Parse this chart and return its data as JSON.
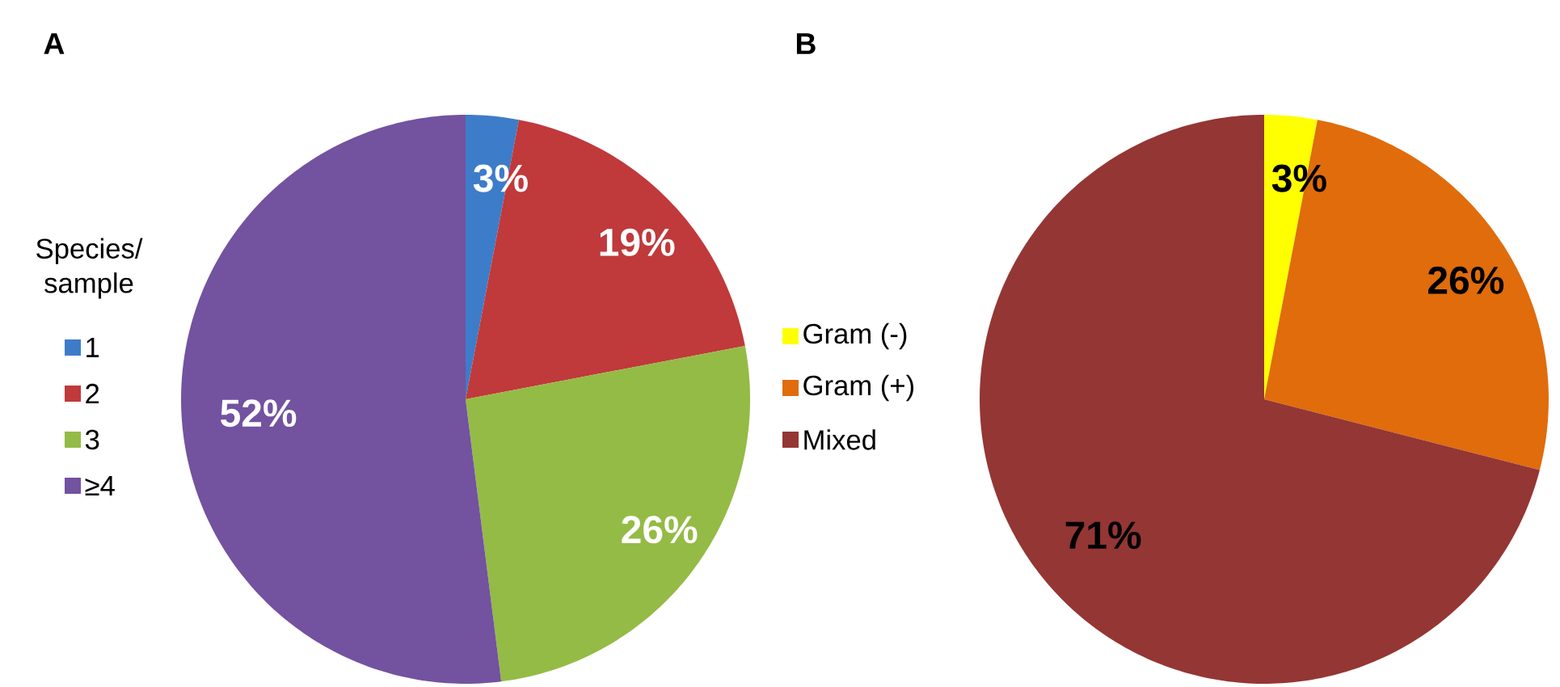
{
  "chart_data": [
    {
      "type": "pie",
      "title": "A",
      "legend_title": "Species/ sample",
      "legend": "left",
      "categories": [
        "1",
        "2",
        "3",
        "≥4"
      ],
      "values": [
        3,
        19,
        26,
        52
      ],
      "colors": [
        "#3d7cc9",
        "#c0393b",
        "#94bb45",
        "#7352a0"
      ],
      "value_labels": [
        "3%",
        "19%",
        "26%",
        "52%"
      ]
    },
    {
      "type": "pie",
      "title": "B",
      "legend": "left",
      "categories": [
        "Gram (-)",
        "Gram (+)",
        "Mixed"
      ],
      "values": [
        3,
        26,
        71
      ],
      "colors": [
        "#ffff00",
        "#e06c0c",
        "#943634"
      ],
      "value_labels": [
        "3%",
        "26%",
        "71%"
      ]
    }
  ]
}
